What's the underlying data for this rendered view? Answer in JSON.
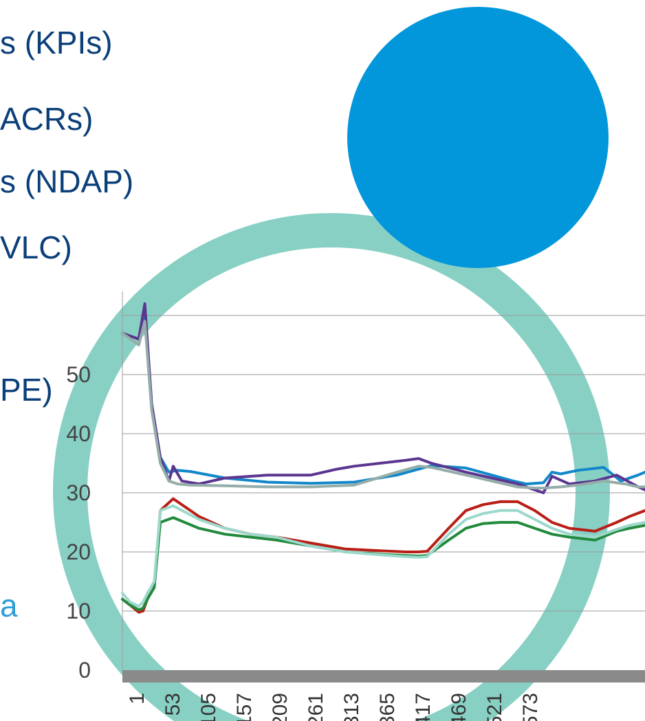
{
  "slide": {
    "bullets": [
      {
        "text": "s (KPIs)"
      },
      {
        "text": "ACRs)"
      },
      {
        "text": "s (NDAP)"
      },
      {
        "text": "VLC)"
      },
      {
        "text": "PE)"
      },
      {
        "text": "a"
      }
    ]
  },
  "decor": {
    "ring_color": "#88d0c4",
    "disc_color": "#0296db"
  },
  "chart_data": {
    "type": "line",
    "title": "",
    "xlabel": "",
    "ylabel": "",
    "ylim": [
      0,
      60
    ],
    "yticks": [
      0,
      10,
      20,
      30,
      40,
      50
    ],
    "xtick_labels": [
      "1",
      "53",
      "105",
      "157",
      "209",
      "261",
      "313",
      "365",
      "417",
      "469",
      "521",
      "573"
    ],
    "xlim": [
      1,
      608
    ],
    "grid": true,
    "legend": "none",
    "series": [
      {
        "color": "#1287c9",
        "x": [
          1,
          20,
          27,
          35,
          45,
          55,
          65,
          80,
          120,
          170,
          220,
          270,
          320,
          345,
          360,
          400,
          430,
          455,
          470,
          490,
          500,
          510,
          530,
          560,
          580,
          600,
          608
        ],
        "y": [
          57,
          56,
          60,
          45,
          36,
          33.5,
          33.8,
          33.6,
          32.5,
          31.8,
          31.6,
          31.8,
          33,
          34,
          34.6,
          34.2,
          33,
          32,
          31.5,
          31.7,
          33.5,
          33.2,
          33.8,
          34.3,
          32,
          33,
          33.5
        ]
      },
      {
        "color": "#5b3690",
        "x": [
          1,
          20,
          27,
          35,
          45,
          55,
          60,
          70,
          90,
          120,
          170,
          220,
          250,
          270,
          300,
          330,
          345,
          360,
          400,
          430,
          460,
          480,
          490,
          500,
          520,
          550,
          575,
          600,
          608
        ],
        "y": [
          57,
          56,
          62,
          45,
          36,
          32,
          34.5,
          32,
          31.5,
          32.5,
          33,
          33,
          34,
          34.5,
          35,
          35.5,
          35.8,
          35,
          33.5,
          32.5,
          31.5,
          30.5,
          30,
          32.8,
          31.5,
          32,
          33,
          31,
          30.5
        ]
      },
      {
        "color": "#94ada9",
        "x": [
          1,
          20,
          27,
          35,
          45,
          55,
          65,
          80,
          120,
          170,
          220,
          270,
          320,
          345,
          360,
          400,
          430,
          460,
          480,
          490,
          510,
          530,
          560,
          585,
          600,
          608
        ],
        "y": [
          57,
          55,
          59,
          44,
          35,
          32,
          31.5,
          31.3,
          31.2,
          31,
          31,
          31.3,
          33.5,
          34.5,
          34.3,
          33,
          32,
          31,
          30.8,
          30.8,
          31,
          31.3,
          32,
          31.5,
          31,
          31
        ]
      },
      {
        "color": "#b81f17",
        "x": [
          1,
          10,
          20,
          25,
          30,
          38,
          45,
          60,
          90,
          120,
          150,
          180,
          220,
          260,
          300,
          330,
          345,
          355,
          380,
          400,
          420,
          440,
          460,
          480,
          500,
          520,
          550,
          575,
          590,
          608
        ],
        "y": [
          12,
          11,
          9.8,
          10,
          12,
          14,
          27,
          29,
          26,
          24,
          23,
          22.5,
          21.5,
          20.5,
          20.2,
          20,
          20,
          20.1,
          24,
          27,
          28,
          28.5,
          28.5,
          27,
          25,
          24,
          23.5,
          25,
          26,
          27
        ]
      },
      {
        "color": "#228a3c",
        "x": [
          1,
          10,
          20,
          25,
          30,
          38,
          45,
          60,
          90,
          120,
          150,
          180,
          220,
          260,
          300,
          330,
          345,
          355,
          380,
          400,
          420,
          440,
          460,
          480,
          500,
          520,
          550,
          575,
          590,
          608
        ],
        "y": [
          12,
          11,
          10.2,
          10.5,
          12,
          14,
          25,
          25.8,
          24,
          23,
          22.5,
          22,
          21,
          20,
          19.6,
          19.4,
          19.3,
          19.4,
          22,
          24,
          24.8,
          25,
          25,
          24,
          23,
          22.5,
          22,
          23.5,
          24,
          24.5
        ]
      },
      {
        "color": "#9cd8cc",
        "x": [
          1,
          10,
          20,
          25,
          30,
          38,
          45,
          60,
          90,
          120,
          150,
          180,
          220,
          260,
          300,
          330,
          345,
          355,
          380,
          400,
          420,
          440,
          460,
          480,
          500,
          520,
          550,
          575,
          590,
          608
        ],
        "y": [
          13,
          11.5,
          10.8,
          11.5,
          13,
          15,
          27,
          27.8,
          25.5,
          24,
          23,
          22.5,
          21,
          20,
          19.5,
          19.2,
          19.1,
          19.2,
          23,
          25.5,
          26.5,
          27,
          27,
          25.5,
          24,
          23,
          22.5,
          23.8,
          24.5,
          25
        ]
      }
    ]
  }
}
